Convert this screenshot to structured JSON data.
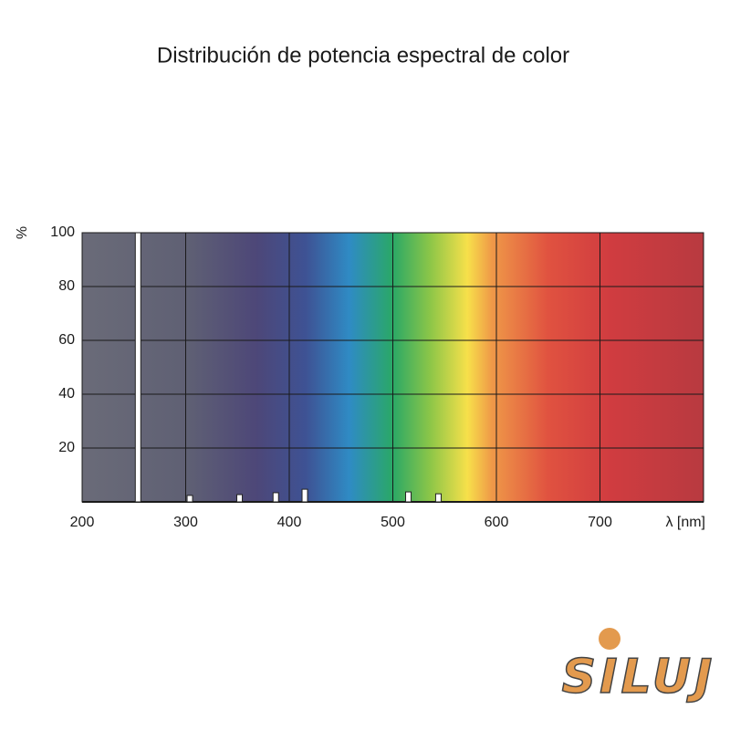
{
  "chart_data": {
    "type": "bar",
    "title": "Distribución de potencia espectral de color",
    "x_label": "λ [nm]",
    "y_label": "%",
    "x": [
      254,
      304,
      352,
      387,
      415,
      515,
      544
    ],
    "values": [
      100,
      2.4,
      2.7,
      3.4,
      4.7,
      3.7,
      3
    ],
    "color": "#ffffff",
    "xlim": [
      200,
      800
    ],
    "xticks": [
      200,
      300,
      400,
      500,
      600,
      700
    ],
    "ylim": [
      0,
      100
    ],
    "yticks": [
      20,
      40,
      60,
      80,
      100
    ],
    "grid": true
  },
  "logo": "SILUJ"
}
